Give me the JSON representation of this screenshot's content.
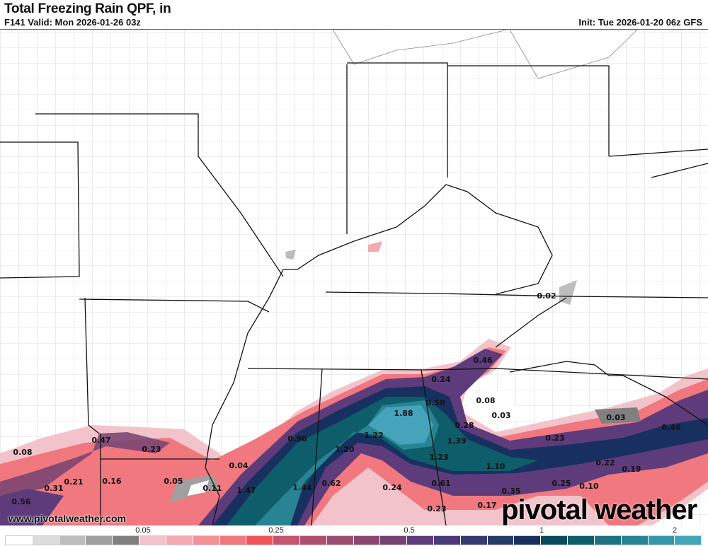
{
  "header": {
    "title": "Total Freezing Rain QPF, in",
    "valid": "F141 Valid: Mon 2026-01-26 03z",
    "init": "Init: Tue 2026-01-20 06z GFS"
  },
  "map": {
    "variable": "Total Freezing Rain QPF",
    "units": "in",
    "point_labels": [
      "0.02",
      "0.46",
      "0.24",
      "0.50",
      "0.08",
      "0.03",
      "1.88",
      "0.28",
      "0.96",
      "1.22",
      "0.23",
      "0.47",
      "0.08",
      "1.39",
      "0.23",
      "0.03",
      "0.46",
      "1.20",
      "1.23",
      "0.04",
      "1.10",
      "0.22",
      "0.19",
      "0.21",
      "0.16",
      "0.05",
      "0.31",
      "0.11",
      "1.47",
      "1.44",
      "0.62",
      "0.24",
      "0.61",
      "0.25",
      "0.35",
      "0.56",
      "0.23",
      "0.17",
      "0.10"
    ]
  },
  "footer": {
    "website": "www.pivotalweather.com",
    "logo": "pivotal weather"
  },
  "colorbar": {
    "tick_labels": [
      "0.05",
      "0.25",
      "0.5",
      "1",
      "2"
    ],
    "colors": [
      "#ffffff",
      "#dcdcdc",
      "#bdbdbd",
      "#a0a0a0",
      "#808080",
      "#f3c3cb",
      "#f3aab0",
      "#f29297",
      "#f0787e",
      "#f05458",
      "#c45470",
      "#ad4f6e",
      "#9c4c70",
      "#8a4670",
      "#744270",
      "#5e3c7c",
      "#4a3a7c",
      "#353a70",
      "#283a68",
      "#183060",
      "#064c5a",
      "#0d5e6a",
      "#1e7383",
      "#288493",
      "#3695ab",
      "#45a3bc"
    ]
  }
}
